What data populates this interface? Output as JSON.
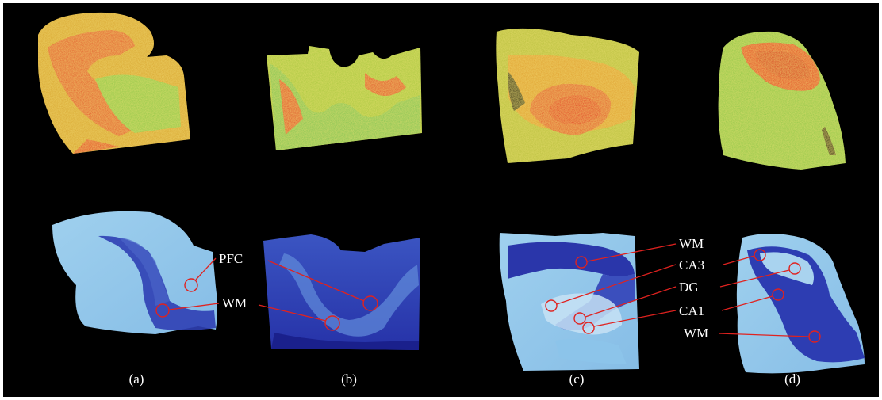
{
  "panels": [
    {
      "caption": "(a)",
      "labels": [
        "PFC",
        "WM"
      ]
    },
    {
      "caption": "(b)",
      "labels": []
    },
    {
      "caption": "(c)",
      "labels": [
        "WM",
        "CA3",
        "DG",
        "CA1"
      ]
    },
    {
      "caption": "(d)",
      "labels": [
        "WM"
      ]
    }
  ],
  "colors": {
    "background": "#000000",
    "heat_low": "#2c8fd0",
    "heat_mid": "#8fd14f",
    "heat_high": "#e23a1e",
    "stain_light": "#9fd0ee",
    "stain_dark": "#1f2aa6",
    "annotation": "#e0221f"
  }
}
